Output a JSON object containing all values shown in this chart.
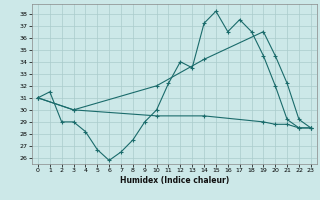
{
  "xlabel": "Humidex (Indice chaleur)",
  "bg_color": "#cce8e8",
  "grid_color": "#aacccc",
  "line_color": "#1a6b6b",
  "ylim": [
    25.5,
    38.8
  ],
  "xlim": [
    -0.5,
    23.5
  ],
  "yticks": [
    26,
    27,
    28,
    29,
    30,
    31,
    32,
    33,
    34,
    35,
    36,
    37,
    38
  ],
  "xticks": [
    0,
    1,
    2,
    3,
    4,
    5,
    6,
    7,
    8,
    9,
    10,
    11,
    12,
    13,
    14,
    15,
    16,
    17,
    18,
    19,
    20,
    21,
    22,
    23
  ],
  "series1_x": [
    0,
    1,
    2,
    3,
    4,
    5,
    6,
    7,
    8,
    9,
    10,
    11,
    12,
    13,
    14,
    15,
    16,
    17,
    18,
    19,
    20,
    21,
    22,
    23
  ],
  "series1_y": [
    31.0,
    31.5,
    29.0,
    29.0,
    28.2,
    26.7,
    25.8,
    26.5,
    27.5,
    29.0,
    30.0,
    32.2,
    34.0,
    33.5,
    37.2,
    38.2,
    36.5,
    37.5,
    36.5,
    34.5,
    32.0,
    29.2,
    28.5,
    28.5
  ],
  "series2_x": [
    0,
    3,
    10,
    14,
    19,
    20,
    21,
    22,
    23
  ],
  "series2_y": [
    31.0,
    30.0,
    32.0,
    34.2,
    36.5,
    34.5,
    32.2,
    29.2,
    28.5
  ],
  "series3_x": [
    0,
    3,
    10,
    14,
    19,
    20,
    21,
    22,
    23
  ],
  "series3_y": [
    31.0,
    30.0,
    29.5,
    29.5,
    29.0,
    28.8,
    28.8,
    28.5,
    28.5
  ]
}
